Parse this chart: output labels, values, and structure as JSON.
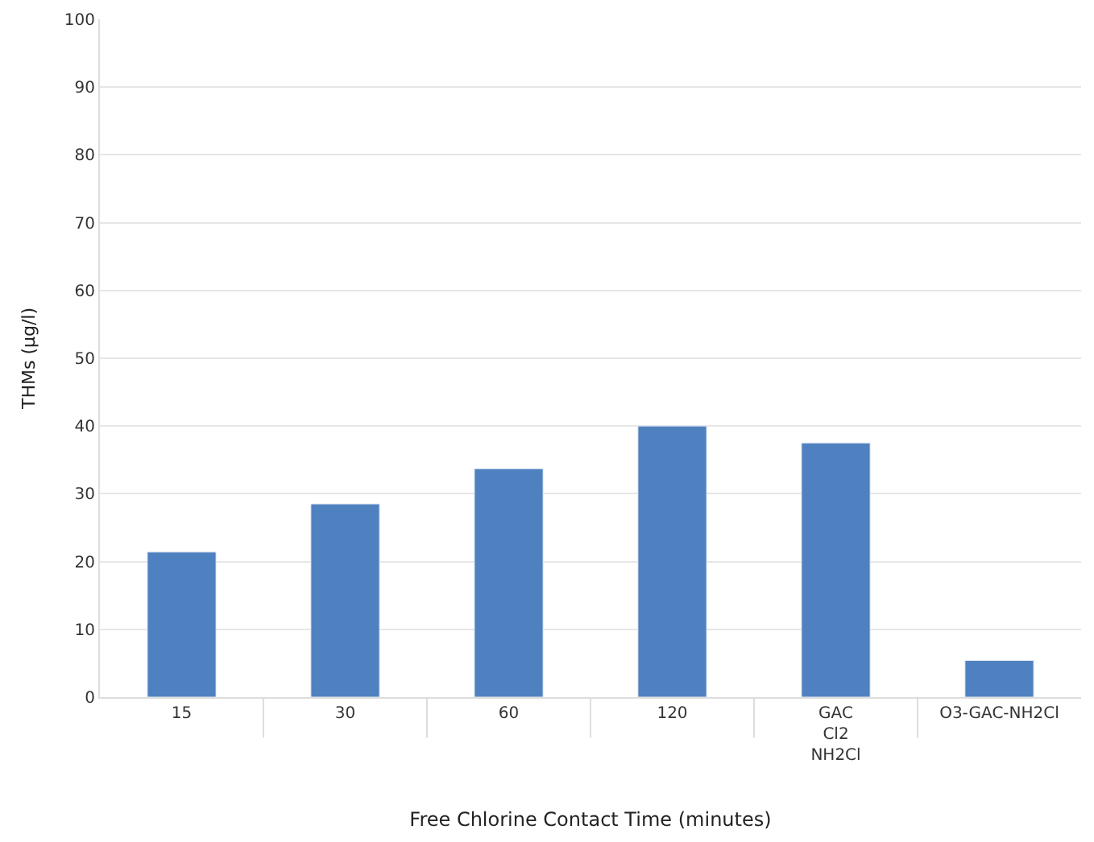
{
  "chart_data": {
    "type": "bar",
    "xlabel": "Free Chlorine Contact Time (minutes)",
    "ylabel": "THMs (µg/l)",
    "categories": [
      "15",
      "30",
      "60",
      "120",
      "GAC\nCl2\nNH2Cl",
      "O3-GAC-NH2Cl"
    ],
    "values": [
      21.4,
      28.5,
      33.7,
      40,
      37.5,
      5.4
    ],
    "color": "#4f81c0",
    "ylim": [
      0,
      100
    ],
    "yticks": [
      0,
      10,
      20,
      30,
      40,
      50,
      60,
      70,
      80,
      90,
      100
    ],
    "grid": "y"
  }
}
